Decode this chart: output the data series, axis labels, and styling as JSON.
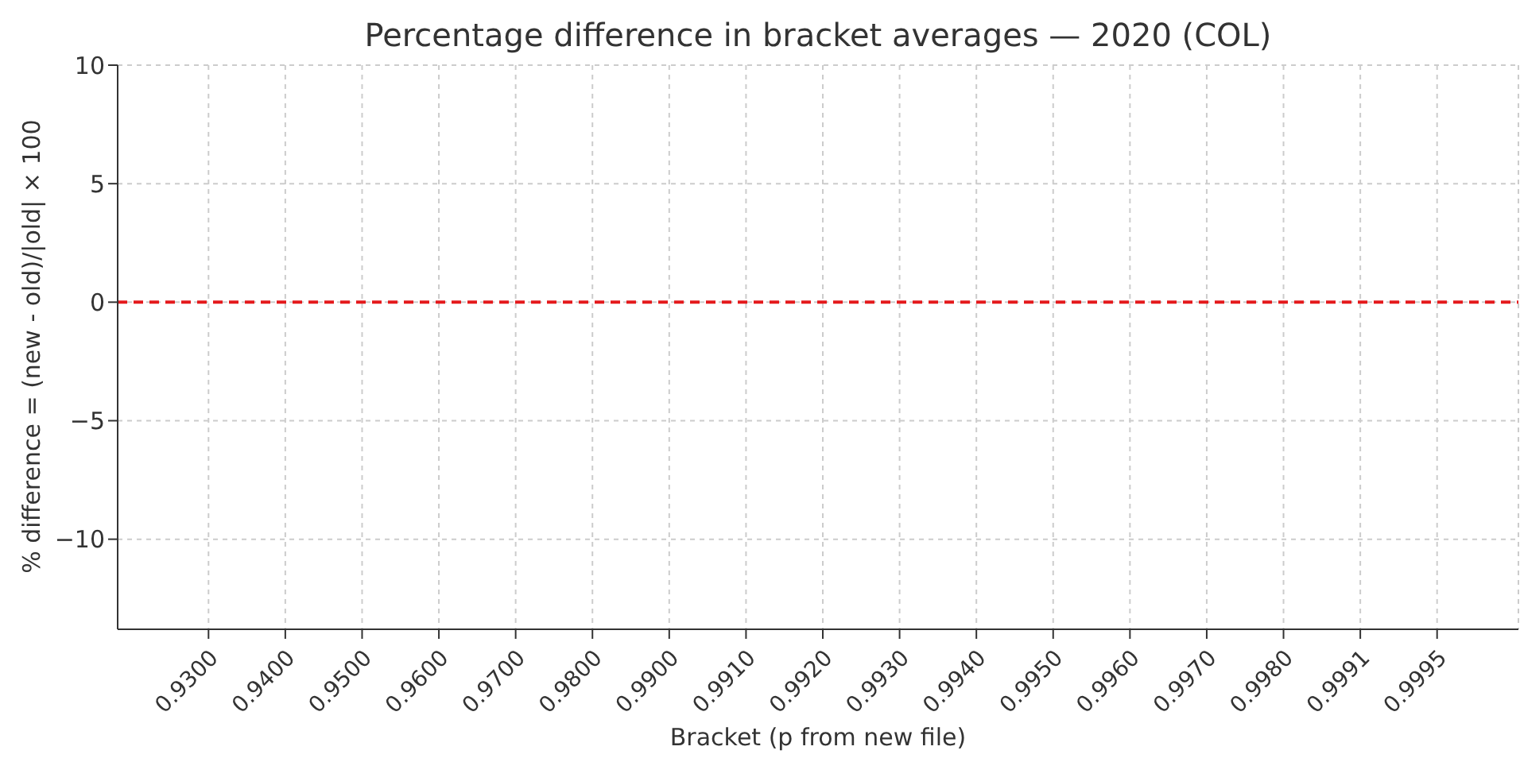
{
  "chart_data": {
    "type": "bar",
    "title": "Percentage difference in bracket averages — 2020 (COL)",
    "xlabel": "Bracket (p from new file)",
    "ylabel": "% difference = (new - old)/|old| × 100",
    "categories": [
      "0.9300",
      "0.9400",
      "0.9500",
      "0.9600",
      "0.9700",
      "0.9800",
      "0.9900",
      "0.9910",
      "0.9920",
      "0.9930",
      "0.9940",
      "0.9950",
      "0.9960",
      "0.9970",
      "0.9980",
      "0.9991",
      "0.9995"
    ],
    "values": [
      null,
      null,
      null,
      null,
      null,
      null,
      null,
      null,
      null,
      null,
      null,
      null,
      null,
      null,
      null,
      null,
      null
    ],
    "ylim": [
      -13.8,
      10
    ],
    "yticks": [
      -10,
      -5,
      0,
      5,
      10
    ],
    "grid": true,
    "ref_lines": [
      {
        "axis": "y",
        "value": 0,
        "color": "#e41a1c",
        "line_style": "dashed"
      }
    ]
  }
}
